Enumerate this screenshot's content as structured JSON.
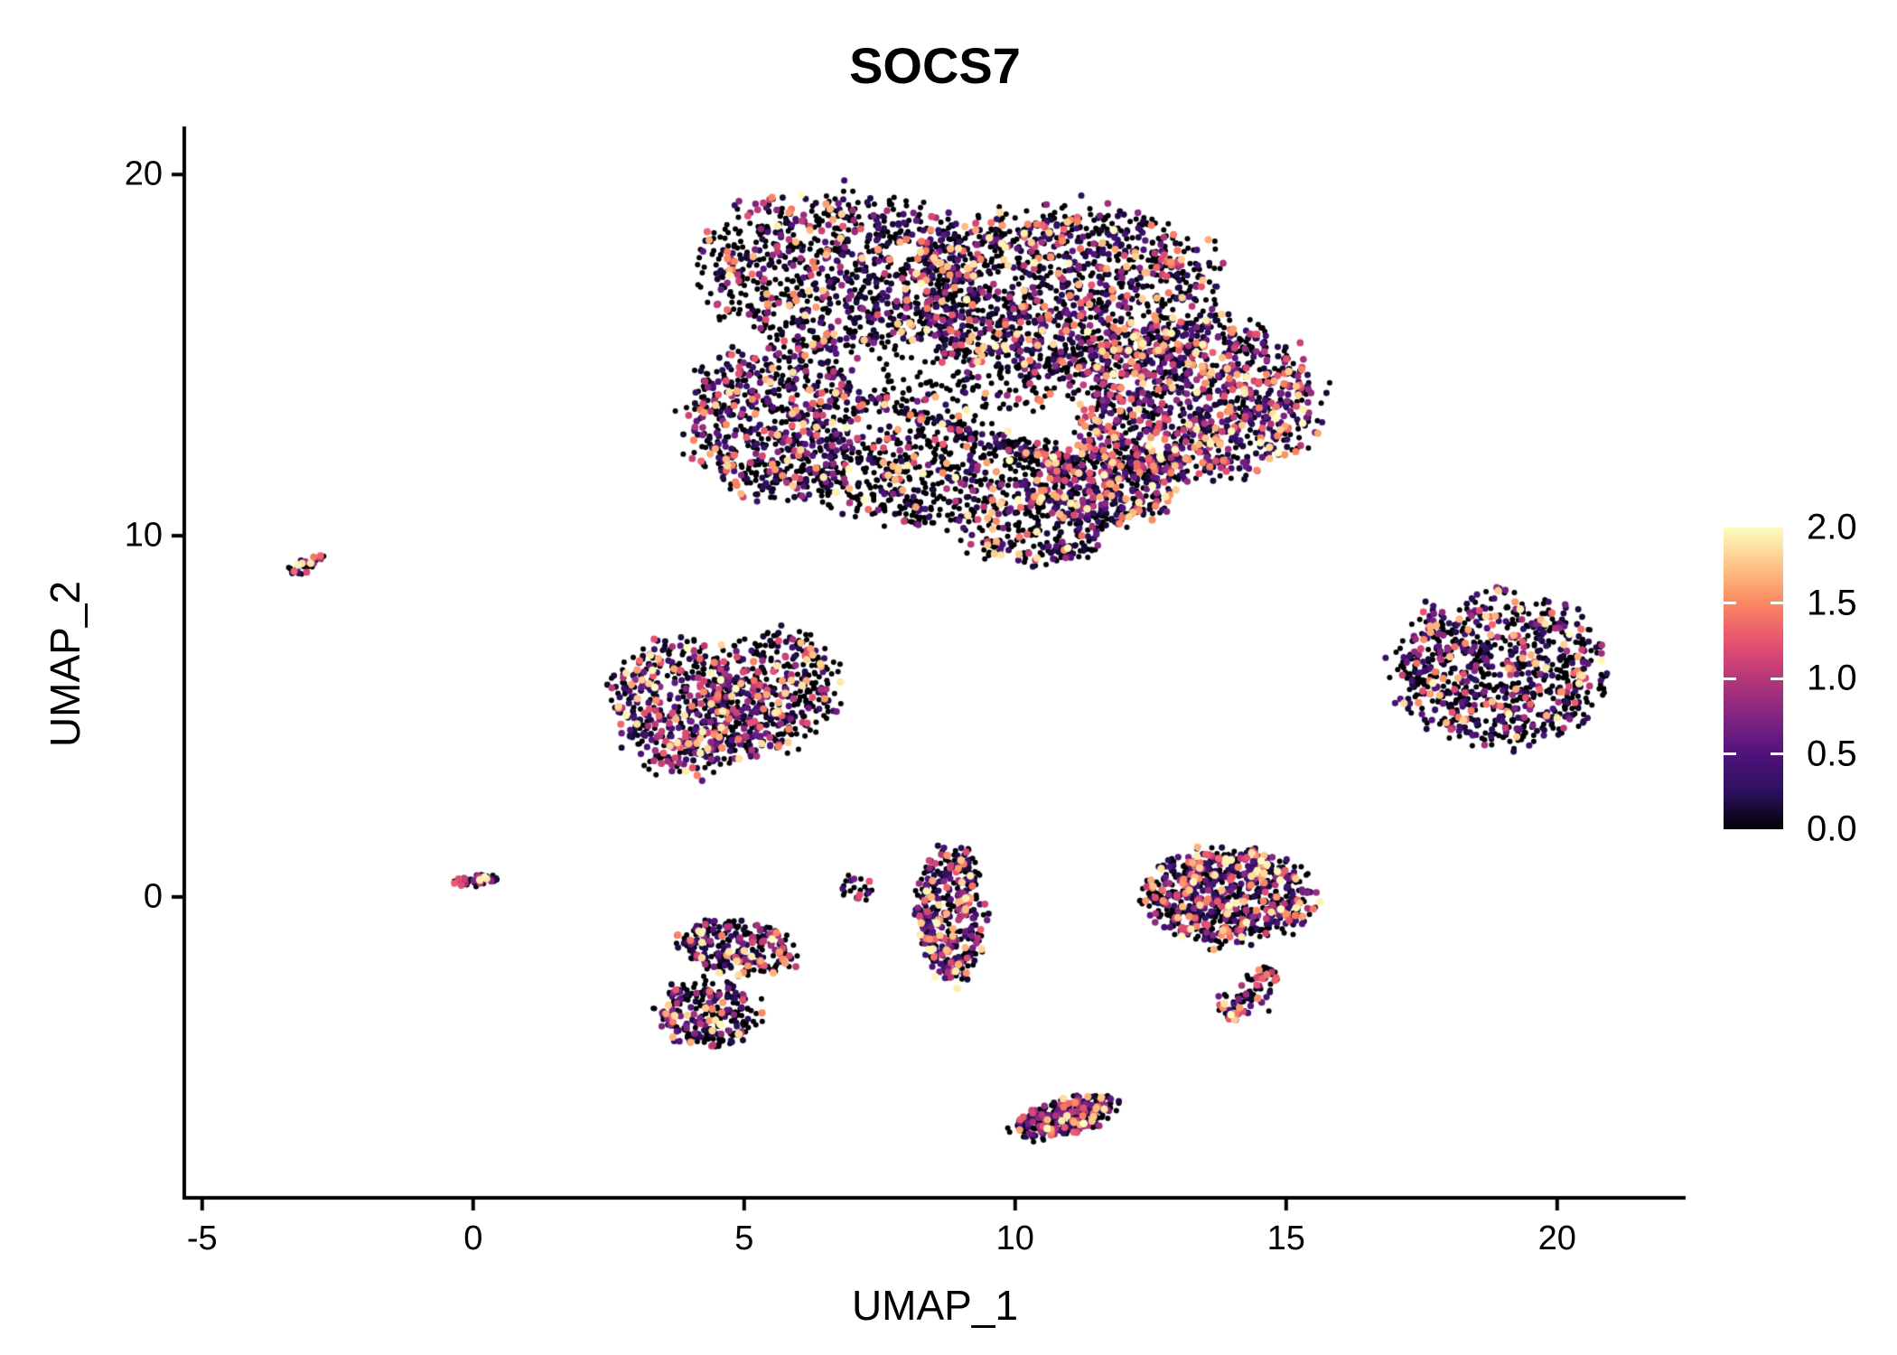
{
  "chart_data": {
    "type": "scatter",
    "title": "SOCS7",
    "xlabel": "UMAP_1",
    "ylabel": "UMAP_2",
    "xlim": [
      -5.33,
      22.37
    ],
    "ylim": [
      -8.33,
      21.33
    ],
    "grid": false,
    "legend_position": "right",
    "xticks": {
      "values": [
        -5,
        0,
        5,
        10,
        15,
        20
      ],
      "labels": [
        "-5",
        "0",
        "5",
        "10",
        "15",
        "20"
      ]
    },
    "yticks": {
      "values": [
        0,
        10,
        20
      ],
      "labels": [
        "0",
        "10",
        "20"
      ]
    },
    "colorbar": {
      "min": 0,
      "max": 2,
      "tick_values": [
        0,
        0.5,
        1,
        1.5,
        2
      ],
      "tick_labels": [
        "0.0",
        "0.5",
        "1.0",
        "1.5",
        "2.0"
      ]
    },
    "palette": {
      "name": "magma",
      "stops": [
        [
          0.0,
          "#000004"
        ],
        [
          0.125,
          "#2c115f"
        ],
        [
          0.25,
          "#51127c"
        ],
        [
          0.375,
          "#822681"
        ],
        [
          0.5,
          "#b73779"
        ],
        [
          0.625,
          "#e8536f"
        ],
        [
          0.75,
          "#fb8861"
        ],
        [
          0.875,
          "#fec488"
        ],
        [
          1.0,
          "#fcfdbf"
        ]
      ]
    },
    "clusters": [
      {
        "name": "main-upper-left",
        "shape": "blob",
        "cx": 6.8,
        "cy": 17.3,
        "rx": 2.6,
        "ry": 2.3,
        "rot": -10,
        "n": 900,
        "p0": 0.55,
        "vk": 2.4
      },
      {
        "name": "main-upper-right",
        "shape": "blob",
        "cx": 10.8,
        "cy": 16.8,
        "rx": 3.0,
        "ry": 2.4,
        "rot": 0,
        "n": 1300,
        "p0": 0.5,
        "vk": 2.4
      },
      {
        "name": "main-right",
        "shape": "blob",
        "cx": 13.3,
        "cy": 13.8,
        "rx": 2.3,
        "ry": 2.3,
        "rot": 0,
        "n": 1100,
        "p0": 0.38,
        "vk": 2.2
      },
      {
        "name": "main-left",
        "shape": "blob",
        "cx": 5.6,
        "cy": 13.2,
        "rx": 1.7,
        "ry": 2.2,
        "rot": 0,
        "n": 700,
        "p0": 0.5,
        "vk": 2.4
      },
      {
        "name": "main-bottom-band",
        "shape": "blob",
        "cx": 8.7,
        "cy": 11.6,
        "rx": 2.6,
        "ry": 1.4,
        "rot": 0,
        "n": 600,
        "p0": 0.68,
        "vk": 2.4
      },
      {
        "name": "main-bottom-right",
        "shape": "blob",
        "cx": 11.6,
        "cy": 11.4,
        "rx": 1.4,
        "ry": 1.2,
        "rot": 0,
        "n": 450,
        "p0": 0.42,
        "vk": 2.3
      },
      {
        "name": "main-center-sparse",
        "shape": "blob",
        "cx": 9.3,
        "cy": 14.8,
        "rx": 2.2,
        "ry": 1.7,
        "rot": 0,
        "n": 250,
        "p0": 0.72,
        "vk": 2.4
      },
      {
        "name": "main-bottom-spur",
        "shape": "blob",
        "cx": 10.3,
        "cy": 10.0,
        "rx": 1.3,
        "ry": 0.9,
        "rot": 0,
        "n": 180,
        "p0": 0.6,
        "vk": 2.4
      },
      {
        "name": "main-diagonal-streak",
        "shape": "line",
        "x1": 7.2,
        "y1": 13.8,
        "x2": 10.5,
        "y2": 12.2,
        "w": 0.22,
        "n": 120,
        "p0": 0.7,
        "vk": 2.4
      },
      {
        "name": "left-small-streak",
        "shape": "line",
        "x1": -3.35,
        "y1": 8.95,
        "x2": -2.75,
        "y2": 9.45,
        "w": 0.12,
        "n": 28,
        "p0": 0.45,
        "vk": 2.0
      },
      {
        "name": "mid-left-a",
        "shape": "blob",
        "cx": 3.9,
        "cy": 5.2,
        "rx": 1.35,
        "ry": 1.85,
        "rot": 10,
        "n": 500,
        "p0": 0.42,
        "vk": 2.3
      },
      {
        "name": "mid-left-b",
        "shape": "blob",
        "cx": 5.5,
        "cy": 5.7,
        "rx": 1.25,
        "ry": 1.75,
        "rot": -10,
        "n": 450,
        "p0": 0.62,
        "vk": 2.3
      },
      {
        "name": "right-round",
        "shape": "blob",
        "cx": 18.9,
        "cy": 6.3,
        "rx": 1.95,
        "ry": 2.15,
        "rot": 15,
        "n": 850,
        "p0": 0.55,
        "vk": 2.2
      },
      {
        "name": "origin-streak",
        "shape": "line",
        "x1": -0.35,
        "y1": 0.35,
        "x2": 0.45,
        "y2": 0.55,
        "w": 0.16,
        "n": 45,
        "p0": 0.45,
        "vk": 2.0
      },
      {
        "name": "lower-left-top",
        "shape": "blob",
        "cx": 4.9,
        "cy": -1.4,
        "rx": 1.15,
        "ry": 0.75,
        "rot": -15,
        "n": 260,
        "p0": 0.5,
        "vk": 2.2
      },
      {
        "name": "lower-left-bottom",
        "shape": "blob",
        "cx": 4.35,
        "cy": -3.2,
        "rx": 0.95,
        "ry": 0.95,
        "rot": 0,
        "n": 260,
        "p0": 0.55,
        "vk": 2.2
      },
      {
        "name": "tiny-mid",
        "shape": "blob",
        "cx": 7.05,
        "cy": 0.3,
        "rx": 0.3,
        "ry": 0.45,
        "rot": 0,
        "n": 22,
        "p0": 0.5,
        "vk": 2.2
      },
      {
        "name": "vertical-strip",
        "shape": "blob",
        "cx": 8.8,
        "cy": -0.5,
        "rx": 0.65,
        "ry": 1.9,
        "rot": 0,
        "n": 380,
        "p0": 0.48,
        "vk": 2.2
      },
      {
        "name": "lower-right",
        "shape": "blob",
        "cx": 13.9,
        "cy": 0.0,
        "rx": 1.55,
        "ry": 1.35,
        "rot": 0,
        "n": 750,
        "p0": 0.45,
        "vk": 2.0
      },
      {
        "name": "lower-right-tail",
        "shape": "line",
        "x1": 14.75,
        "y1": -2.0,
        "x2": 13.9,
        "y2": -3.35,
        "w": 0.3,
        "n": 90,
        "p0": 0.45,
        "vk": 2.0
      },
      {
        "name": "bottom-strip",
        "shape": "blob",
        "cx": 10.9,
        "cy": -6.1,
        "rx": 1.05,
        "ry": 0.48,
        "rot": 25,
        "n": 300,
        "p0": 0.45,
        "vk": 2.0
      }
    ]
  }
}
